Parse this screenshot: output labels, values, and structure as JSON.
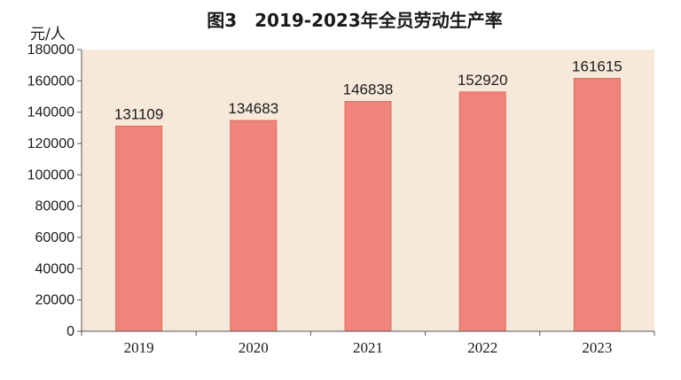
{
  "chart_data": {
    "type": "bar",
    "title": "图3　2019-2023年全员劳动生产率",
    "unit_label": "元/人",
    "xlabel": "",
    "ylabel": "",
    "categories": [
      "2019",
      "2020",
      "2021",
      "2022",
      "2023"
    ],
    "values": [
      131109,
      134683,
      146838,
      152920,
      161615
    ],
    "data_labels": [
      "131109",
      "134683",
      "146838",
      "152920",
      "161615"
    ],
    "ylim": [
      0,
      180000
    ],
    "yticks": [
      0,
      20000,
      40000,
      60000,
      80000,
      100000,
      120000,
      140000,
      160000,
      180000
    ],
    "ytick_labels": [
      "0",
      "20000",
      "40000",
      "60000",
      "80000",
      "100000",
      "120000",
      "140000",
      "160000",
      "180000"
    ],
    "grid": false,
    "legend": "none",
    "colors": {
      "plot_background": "#f7e9d9",
      "bar_fill": "#ef857a",
      "bar_edge": "#e0685d",
      "axis": "#555555"
    }
  }
}
